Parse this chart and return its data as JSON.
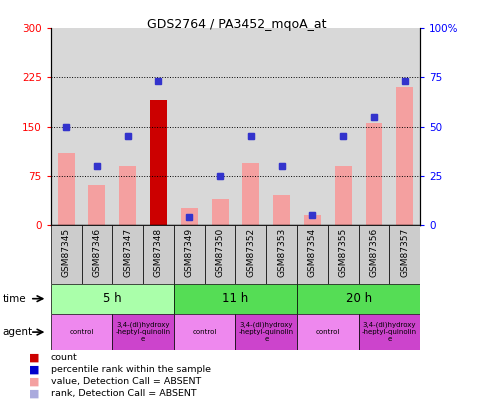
{
  "title": "GDS2764 / PA3452_mqoA_at",
  "samples": [
    "GSM87345",
    "GSM87346",
    "GSM87347",
    "GSM87348",
    "GSM87349",
    "GSM87350",
    "GSM87352",
    "GSM87353",
    "GSM87354",
    "GSM87355",
    "GSM87356",
    "GSM87357"
  ],
  "bar_values": [
    110,
    60,
    90,
    190,
    25,
    40,
    95,
    45,
    15,
    90,
    155,
    210
  ],
  "bar_colors_main": [
    "#f4a0a0",
    "#f4a0a0",
    "#f4a0a0",
    "#cc0000",
    "#f4a0a0",
    "#f4a0a0",
    "#f4a0a0",
    "#f4a0a0",
    "#f4a0a0",
    "#f4a0a0",
    "#f4a0a0",
    "#f4a0a0"
  ],
  "blue_dot_vals": [
    150,
    90,
    135,
    220,
    12,
    75,
    135,
    90,
    15,
    135,
    165,
    220
  ],
  "purple_dot_vals": [
    150,
    90,
    135,
    null,
    12,
    75,
    135,
    90,
    15,
    135,
    165,
    null
  ],
  "hlines": [
    75,
    150,
    225
  ],
  "ylim_left": [
    0,
    300
  ],
  "yticks_left": [
    0,
    75,
    150,
    225,
    300
  ],
  "ytick_labels_left": [
    "0",
    "75",
    "150",
    "225",
    "300"
  ],
  "ytick_labels_right": [
    "0",
    "25",
    "50",
    "75",
    "100%"
  ],
  "time_groups": [
    {
      "label": "5 h",
      "start": 0,
      "end": 4,
      "color": "#aaffaa"
    },
    {
      "label": "11 h",
      "start": 4,
      "end": 8,
      "color": "#55dd55"
    },
    {
      "label": "20 h",
      "start": 8,
      "end": 12,
      "color": "#55dd55"
    }
  ],
  "agent_groups": [
    {
      "label": "control",
      "start": 0,
      "end": 2,
      "color": "#ee88ee"
    },
    {
      "label": "3,4-(di)hydroxy\n-heptyl-quinolin\ne",
      "start": 2,
      "end": 4,
      "color": "#cc44cc"
    },
    {
      "label": "control",
      "start": 4,
      "end": 6,
      "color": "#ee88ee"
    },
    {
      "label": "3,4-(di)hydroxy\n-heptyl-quinolin\ne",
      "start": 6,
      "end": 8,
      "color": "#cc44cc"
    },
    {
      "label": "control",
      "start": 8,
      "end": 10,
      "color": "#ee88ee"
    },
    {
      "label": "3,4-(di)hydroxy\n-heptyl-quinolin\ne",
      "start": 10,
      "end": 12,
      "color": "#cc44cc"
    }
  ],
  "legend_items": [
    {
      "label": "count",
      "color": "#cc0000"
    },
    {
      "label": "percentile rank within the sample",
      "color": "#0000cc"
    },
    {
      "label": "value, Detection Call = ABSENT",
      "color": "#f4a0a0"
    },
    {
      "label": "rank, Detection Call = ABSENT",
      "color": "#aaaadd"
    }
  ]
}
